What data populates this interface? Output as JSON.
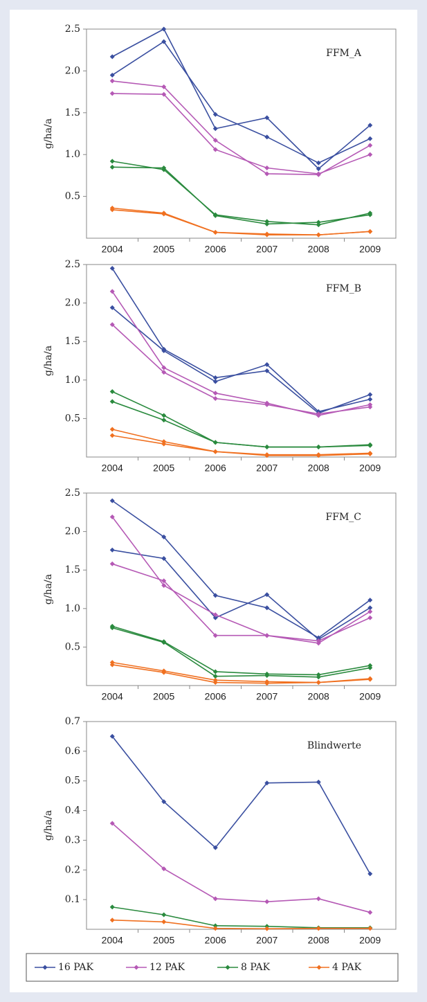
{
  "legend": [
    {
      "name": "16 PAK",
      "color": "#3a4fa0"
    },
    {
      "name": "12 PAK",
      "color": "#b559b5"
    },
    {
      "name": "8 PAK",
      "color": "#2a8a3e"
    },
    {
      "name": "4 PAK",
      "color": "#f07020"
    }
  ],
  "chart_data": [
    {
      "type": "line",
      "title": "FFM_A",
      "y_label": "g/ha/a",
      "categories": [
        "2004",
        "2005",
        "2006",
        "2007",
        "2008",
        "2009"
      ],
      "ylim": [
        0,
        2.5
      ],
      "yticks": [
        0.5,
        {
          "value": 1.0,
          "label": "1.0"
        },
        1.5,
        {
          "value": 2.0,
          "label": "2.0"
        },
        2.5
      ],
      "series": [
        {
          "values": [
            [
              2.17,
              2.5,
              1.31,
              1.44,
              0.83,
              1.35
            ],
            [
              1.95,
              2.35,
              1.48,
              1.21,
              0.9,
              1.19
            ]
          ]
        },
        {
          "values": [
            [
              1.88,
              1.81,
              1.17,
              0.77,
              0.76,
              1.11
            ],
            [
              1.73,
              1.72,
              1.06,
              0.84,
              0.77,
              1.0
            ]
          ]
        },
        {
          "values": [
            [
              0.92,
              0.82,
              0.28,
              0.2,
              0.16,
              0.3
            ],
            [
              0.85,
              0.84,
              0.27,
              0.17,
              0.19,
              0.28
            ]
          ]
        },
        {
          "values": [
            [
              0.36,
              0.3,
              0.07,
              0.05,
              0.04,
              0.08
            ],
            [
              0.34,
              0.29,
              0.07,
              0.04,
              0.04,
              0.08
            ]
          ]
        }
      ]
    },
    {
      "type": "line",
      "title": "FFM_B",
      "y_label": "g/ha/a",
      "categories": [
        "2004",
        "2005",
        "2006",
        "2007",
        "2008",
        "2009"
      ],
      "ylim": [
        0,
        2.5
      ],
      "yticks": [
        0.5,
        {
          "value": 1.0,
          "label": "1.0"
        },
        1.5,
        {
          "value": 2.0,
          "label": "2.0"
        },
        2.5
      ],
      "series": [
        {
          "values": [
            [
              2.45,
              1.4,
              1.03,
              1.12,
              0.57,
              0.81
            ],
            [
              1.94,
              1.38,
              0.98,
              1.2,
              0.59,
              0.75
            ]
          ]
        },
        {
          "values": [
            [
              2.15,
              1.16,
              0.83,
              0.7,
              0.54,
              0.68
            ],
            [
              1.72,
              1.1,
              0.76,
              0.68,
              0.56,
              0.65
            ]
          ]
        },
        {
          "values": [
            [
              0.85,
              0.54,
              0.19,
              0.13,
              0.13,
              0.15
            ],
            [
              0.72,
              0.48,
              0.19,
              0.13,
              0.13,
              0.16
            ]
          ]
        },
        {
          "values": [
            [
              0.36,
              0.2,
              0.07,
              0.02,
              0.02,
              0.04
            ],
            [
              0.28,
              0.17,
              0.07,
              0.03,
              0.03,
              0.05
            ]
          ]
        }
      ]
    },
    {
      "type": "line",
      "title": "FFM_C",
      "y_label": "g/ha/a",
      "categories": [
        "2004",
        "2005",
        "2006",
        "2007",
        "2008",
        "2009"
      ],
      "ylim": [
        0,
        2.5
      ],
      "yticks": [
        0.5,
        {
          "value": 1.0,
          "label": "1.0"
        },
        1.5,
        {
          "value": 2.0,
          "label": "2.0"
        },
        2.5
      ],
      "series": [
        {
          "values": [
            [
              2.4,
              1.93,
              1.17,
              1.01,
              0.62,
              1.11
            ],
            [
              1.76,
              1.65,
              0.88,
              1.18,
              0.6,
              1.01
            ]
          ]
        },
        {
          "values": [
            [
              2.19,
              1.3,
              0.92,
              0.65,
              0.55,
              0.96
            ],
            [
              1.58,
              1.36,
              0.65,
              0.65,
              0.58,
              0.88
            ]
          ]
        },
        {
          "values": [
            [
              0.77,
              0.57,
              0.18,
              0.15,
              0.14,
              0.26
            ],
            [
              0.75,
              0.56,
              0.12,
              0.13,
              0.11,
              0.23
            ]
          ]
        },
        {
          "values": [
            [
              0.3,
              0.19,
              0.07,
              0.05,
              0.04,
              0.09
            ],
            [
              0.27,
              0.17,
              0.04,
              0.03,
              0.04,
              0.08
            ]
          ]
        }
      ]
    },
    {
      "type": "line",
      "title": "Blindwerte",
      "y_label": "g/ha/a",
      "categories": [
        "2004",
        "2005",
        "2006",
        "2007",
        "2008",
        "2009"
      ],
      "ylim": [
        0,
        0.7
      ],
      "yticks": [
        0.1,
        0.2,
        0.3,
        0.4,
        0.5,
        0.6,
        0.7
      ],
      "series": [
        {
          "values": [
            [
              0.65,
              0.43,
              0.275,
              0.493,
              0.496,
              0.187
            ]
          ]
        },
        {
          "values": [
            [
              0.357,
              0.204,
              0.103,
              0.093,
              0.103,
              0.057
            ]
          ]
        },
        {
          "values": [
            [
              0.075,
              0.049,
              0.012,
              0.01,
              0.005,
              0.005
            ]
          ]
        },
        {
          "values": [
            [
              0.031,
              0.025,
              0.003,
              0.002,
              0.003,
              0.003
            ]
          ]
        }
      ]
    }
  ]
}
